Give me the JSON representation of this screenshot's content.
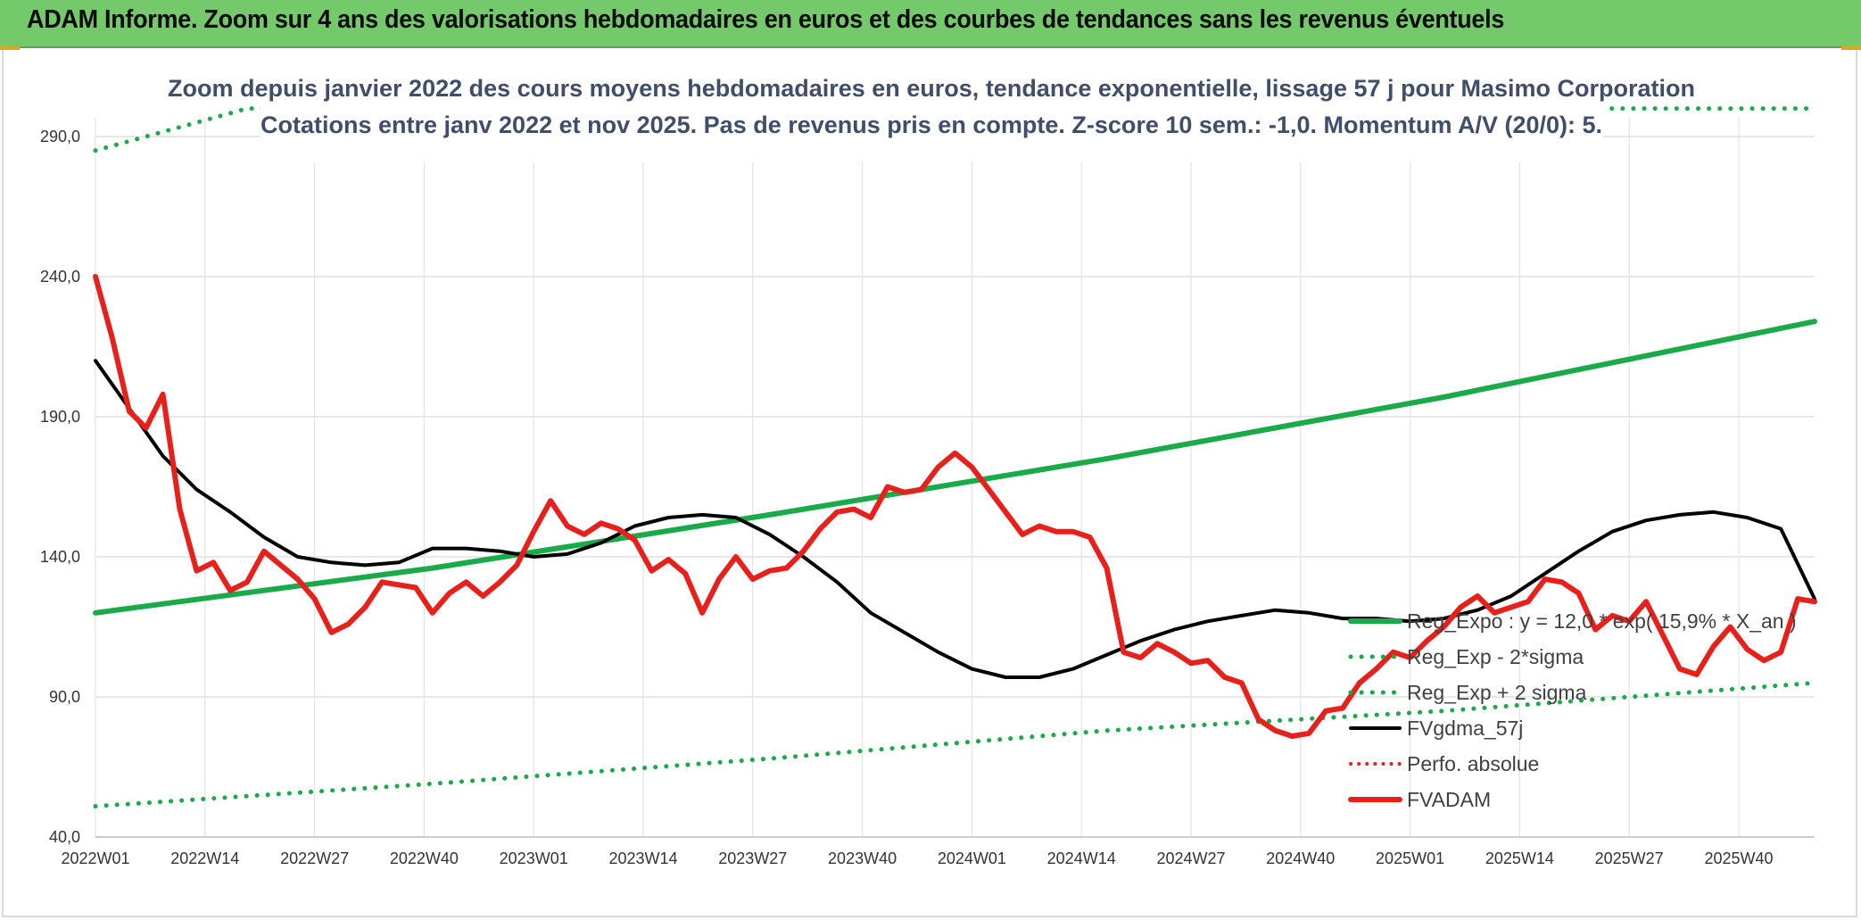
{
  "header": {
    "title": "ADAM Informe. Zoom sur 4 ans des valorisations hebdomadaires en euros et des courbes de tendances sans les revenus éventuels"
  },
  "colors": {
    "header_bg": "#74c96a",
    "reg_expo": "#1aaa4a",
    "sigma_lines": "#1aaa4a",
    "moving_average": "#000000",
    "perfo_absolue": "#e8201c",
    "fvadam": "#e8201c",
    "subtitle_text": "#404e6a"
  },
  "chart_data": {
    "type": "line",
    "title_line1": "Zoom depuis janvier 2022 des cours moyens hebdomadaires en euros, tendance exponentielle, lissage 57 j pour Masimo Corporation",
    "title_line2": "Cotations entre janv 2022 et nov 2025. Pas de revenus pris en compte. Z-score 10 sem.: -1,0. Momentum A/V (20/0): 5.",
    "xlabel": "",
    "ylabel": "",
    "ylim": [
      40,
      300
    ],
    "yticks": [
      40,
      90,
      140,
      190,
      240,
      290
    ],
    "ytick_labels": [
      "40,0",
      "90,0",
      "140,0",
      "190,0",
      "240,0",
      "290,0"
    ],
    "xticks": [
      0,
      13,
      26,
      39,
      52,
      65,
      78,
      91,
      104,
      117,
      130,
      143,
      156,
      169,
      182,
      195
    ],
    "xtick_labels": [
      "2022W01",
      "2022W14",
      "2022W27",
      "2022W40",
      "2023W01",
      "2023W14",
      "2023W27",
      "2023W40",
      "2024W01",
      "2024W14",
      "2024W27",
      "2024W40",
      "2025W01",
      "2025W14",
      "2025W27",
      "2025W40"
    ],
    "x_count": 205,
    "grid": true,
    "legend_position": "right",
    "series": [
      {
        "name": "Reg_Expo : y = 12,0 * exp( 15,9% * X_an )",
        "style": "solid-thick",
        "points": [
          [
            0,
            120
          ],
          [
            40,
            136
          ],
          [
            80,
            155
          ],
          [
            120,
            175
          ],
          [
            160,
            197
          ],
          [
            204,
            224
          ]
        ]
      },
      {
        "name": "Reg_Exp - 2*sigma",
        "style": "dotted",
        "points": [
          [
            0,
            51
          ],
          [
            40,
            59
          ],
          [
            80,
            68
          ],
          [
            120,
            78
          ],
          [
            160,
            85
          ],
          [
            204,
            95
          ]
        ]
      },
      {
        "name": "Reg_Exp + 2 sigma",
        "style": "dotted",
        "points": [
          [
            0,
            285
          ],
          [
            18,
            300
          ],
          [
            204,
            300
          ]
        ]
      },
      {
        "name": "FVgdma_57j",
        "style": "solid",
        "points": [
          [
            0,
            210
          ],
          [
            4,
            193
          ],
          [
            8,
            176
          ],
          [
            12,
            164
          ],
          [
            16,
            156
          ],
          [
            20,
            147
          ],
          [
            24,
            140
          ],
          [
            28,
            138
          ],
          [
            32,
            137
          ],
          [
            36,
            138
          ],
          [
            40,
            143
          ],
          [
            44,
            143
          ],
          [
            48,
            142
          ],
          [
            52,
            140
          ],
          [
            56,
            141
          ],
          [
            60,
            145
          ],
          [
            64,
            151
          ],
          [
            68,
            154
          ],
          [
            72,
            155
          ],
          [
            76,
            154
          ],
          [
            80,
            148
          ],
          [
            84,
            140
          ],
          [
            88,
            131
          ],
          [
            92,
            120
          ],
          [
            96,
            113
          ],
          [
            100,
            106
          ],
          [
            104,
            100
          ],
          [
            108,
            97
          ],
          [
            112,
            97
          ],
          [
            116,
            100
          ],
          [
            120,
            105
          ],
          [
            124,
            110
          ],
          [
            128,
            114
          ],
          [
            132,
            117
          ],
          [
            136,
            119
          ],
          [
            140,
            121
          ],
          [
            144,
            120
          ],
          [
            148,
            118
          ],
          [
            152,
            118
          ],
          [
            156,
            117
          ],
          [
            160,
            118
          ],
          [
            164,
            121
          ],
          [
            168,
            126
          ],
          [
            172,
            134
          ],
          [
            176,
            142
          ],
          [
            180,
            149
          ],
          [
            184,
            153
          ],
          [
            188,
            155
          ],
          [
            192,
            156
          ],
          [
            196,
            154
          ],
          [
            200,
            150
          ],
          [
            204,
            125
          ]
        ]
      },
      {
        "name": "Perfo. absolue",
        "style": "dotted-red",
        "points": []
      },
      {
        "name": "FVADAM",
        "style": "solid-thick-red",
        "points": [
          [
            0,
            240
          ],
          [
            2,
            218
          ],
          [
            4,
            192
          ],
          [
            6,
            186
          ],
          [
            8,
            198
          ],
          [
            10,
            157
          ],
          [
            12,
            135
          ],
          [
            14,
            138
          ],
          [
            16,
            128
          ],
          [
            18,
            131
          ],
          [
            20,
            142
          ],
          [
            22,
            137
          ],
          [
            24,
            132
          ],
          [
            26,
            125
          ],
          [
            28,
            113
          ],
          [
            30,
            116
          ],
          [
            32,
            122
          ],
          [
            34,
            131
          ],
          [
            36,
            130
          ],
          [
            38,
            129
          ],
          [
            40,
            120
          ],
          [
            42,
            127
          ],
          [
            44,
            131
          ],
          [
            46,
            126
          ],
          [
            48,
            131
          ],
          [
            50,
            137
          ],
          [
            52,
            149
          ],
          [
            54,
            160
          ],
          [
            56,
            151
          ],
          [
            58,
            148
          ],
          [
            60,
            152
          ],
          [
            62,
            150
          ],
          [
            64,
            146
          ],
          [
            66,
            135
          ],
          [
            68,
            139
          ],
          [
            70,
            134
          ],
          [
            72,
            120
          ],
          [
            74,
            132
          ],
          [
            76,
            140
          ],
          [
            78,
            132
          ],
          [
            80,
            135
          ],
          [
            82,
            136
          ],
          [
            84,
            142
          ],
          [
            86,
            150
          ],
          [
            88,
            156
          ],
          [
            90,
            157
          ],
          [
            92,
            154
          ],
          [
            94,
            165
          ],
          [
            96,
            163
          ],
          [
            98,
            164
          ],
          [
            100,
            172
          ],
          [
            102,
            177
          ],
          [
            104,
            172
          ],
          [
            106,
            164
          ],
          [
            108,
            156
          ],
          [
            110,
            148
          ],
          [
            112,
            151
          ],
          [
            114,
            149
          ],
          [
            116,
            149
          ],
          [
            118,
            147
          ],
          [
            120,
            136
          ],
          [
            122,
            106
          ],
          [
            124,
            104
          ],
          [
            126,
            109
          ],
          [
            128,
            106
          ],
          [
            130,
            102
          ],
          [
            132,
            103
          ],
          [
            134,
            97
          ],
          [
            136,
            95
          ],
          [
            138,
            82
          ],
          [
            140,
            78
          ],
          [
            142,
            76
          ],
          [
            144,
            77
          ],
          [
            146,
            85
          ],
          [
            148,
            86
          ],
          [
            150,
            95
          ],
          [
            152,
            100
          ],
          [
            154,
            106
          ],
          [
            156,
            104
          ],
          [
            158,
            110
          ],
          [
            160,
            115
          ],
          [
            162,
            122
          ],
          [
            164,
            126
          ],
          [
            166,
            120
          ],
          [
            168,
            122
          ],
          [
            170,
            124
          ],
          [
            172,
            132
          ],
          [
            174,
            131
          ],
          [
            176,
            127
          ],
          [
            178,
            114
          ],
          [
            180,
            119
          ],
          [
            182,
            117
          ],
          [
            184,
            124
          ],
          [
            186,
            112
          ],
          [
            188,
            100
          ],
          [
            190,
            98
          ],
          [
            192,
            108
          ],
          [
            194,
            115
          ],
          [
            196,
            107
          ],
          [
            198,
            103
          ],
          [
            200,
            106
          ],
          [
            202,
            125
          ],
          [
            204,
            124
          ]
        ]
      }
    ]
  }
}
